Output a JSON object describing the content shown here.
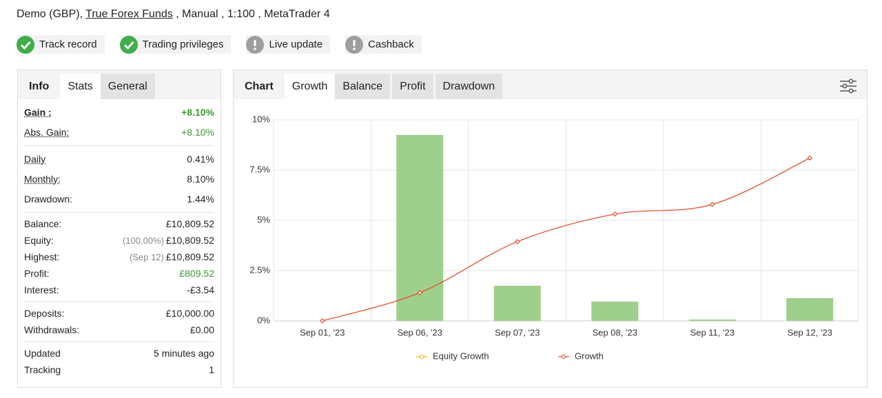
{
  "header": {
    "account": "Demo (GBP),",
    "broker": "True Forex Funds",
    "details": ", Manual , 1:100 , MetaTrader 4"
  },
  "badges": [
    {
      "label": "Track record",
      "status": "ok"
    },
    {
      "label": "Trading privileges",
      "status": "ok"
    },
    {
      "label": "Live update",
      "status": "info"
    },
    {
      "label": "Cashback",
      "status": "info"
    }
  ],
  "stats_panel": {
    "title": "Info",
    "tabs": [
      "Stats",
      "General"
    ],
    "active": 0,
    "groups": [
      [
        {
          "label": "Gain :",
          "value": "+8.10%",
          "color": "#3a9a2e",
          "bold": true,
          "dotted": true
        },
        {
          "label": "Abs. Gain:",
          "value": "+8.10%",
          "color": "#3a9a2e",
          "dotted": true
        }
      ],
      [
        {
          "label": "Daily",
          "value": "0.41%",
          "dotted": true
        },
        {
          "label": "Monthly:",
          "value": "8.10%",
          "dotted": true
        },
        {
          "label": "Drawdown:",
          "value": "1.44%"
        }
      ],
      [
        {
          "label": "Balance:",
          "value": "£10,809.52"
        },
        {
          "label": "Equity:",
          "note": "(100.00%)",
          "value": "£10,809.52"
        },
        {
          "label": "Highest:",
          "note": "(Sep 12)",
          "value": "£10,809.52"
        },
        {
          "label": "Profit:",
          "value": "£809.52",
          "color": "#3a9a2e"
        },
        {
          "label": "Interest:",
          "value": "-£3.54"
        }
      ],
      [
        {
          "label": "Deposits:",
          "value": "£10,000.00"
        },
        {
          "label": "Withdrawals:",
          "value": "£0.00"
        }
      ],
      [
        {
          "label": "Updated",
          "value": "5 minutes ago"
        },
        {
          "label": "Tracking",
          "value": "1"
        }
      ]
    ]
  },
  "chart_panel": {
    "title": "Chart",
    "tabs": [
      "Growth",
      "Balance",
      "Profit",
      "Drawdown"
    ],
    "active": 0
  },
  "chart_data": {
    "type": "bar+line",
    "categories": [
      "Sep 01, '23",
      "Sep 06, '23",
      "Sep 07, '23",
      "Sep 08, '23",
      "Sep 11, '23",
      "Sep 12, '23"
    ],
    "bars": {
      "color": "#9fcf8c",
      "values": [
        0,
        9.25,
        1.75,
        0.96,
        0.07,
        1.13
      ]
    },
    "series": [
      {
        "name": "Equity Growth",
        "color": "#f5b800",
        "values": [
          null,
          null,
          null,
          null,
          null,
          null
        ]
      },
      {
        "name": "Growth",
        "color": "#e0502c",
        "values": [
          0,
          1.4,
          3.94,
          5.31,
          5.79,
          8.1
        ]
      }
    ],
    "ylim": [
      0,
      10
    ],
    "yticks": [
      {
        "value": 0,
        "label": "0%"
      },
      {
        "value": 2.5,
        "label": "2.5%"
      },
      {
        "value": 5,
        "label": "5%"
      },
      {
        "value": 7.5,
        "label": "7.5%"
      },
      {
        "value": 10,
        "label": "10%"
      }
    ],
    "grid": true,
    "legend": "bottom"
  }
}
